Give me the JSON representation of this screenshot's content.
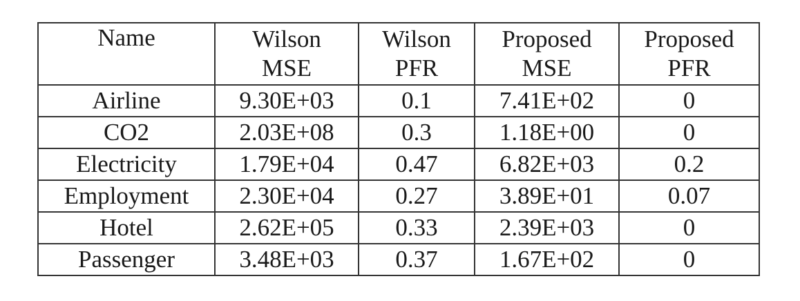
{
  "table": {
    "headers": [
      {
        "line1": "Name",
        "line2": ""
      },
      {
        "line1": "Wilson",
        "line2": "MSE"
      },
      {
        "line1": "Wilson",
        "line2": "PFR"
      },
      {
        "line1": "Proposed",
        "line2": "MSE"
      },
      {
        "line1": "Proposed",
        "line2": "PFR"
      }
    ],
    "rows": [
      [
        "Airline",
        "9.30E+03",
        "0.1",
        "7.41E+02",
        "0"
      ],
      [
        "CO2",
        "2.03E+08",
        "0.3",
        "1.18E+00",
        "0"
      ],
      [
        "Electricity",
        "1.79E+04",
        "0.47",
        "6.82E+03",
        "0.2"
      ],
      [
        "Employment",
        "2.30E+04",
        "0.27",
        "3.89E+01",
        "0.07"
      ],
      [
        "Hotel",
        "2.62E+05",
        "0.33",
        "2.39E+03",
        "0"
      ],
      [
        "Passenger",
        "3.48E+03",
        "0.37",
        "1.67E+02",
        "0"
      ]
    ]
  }
}
